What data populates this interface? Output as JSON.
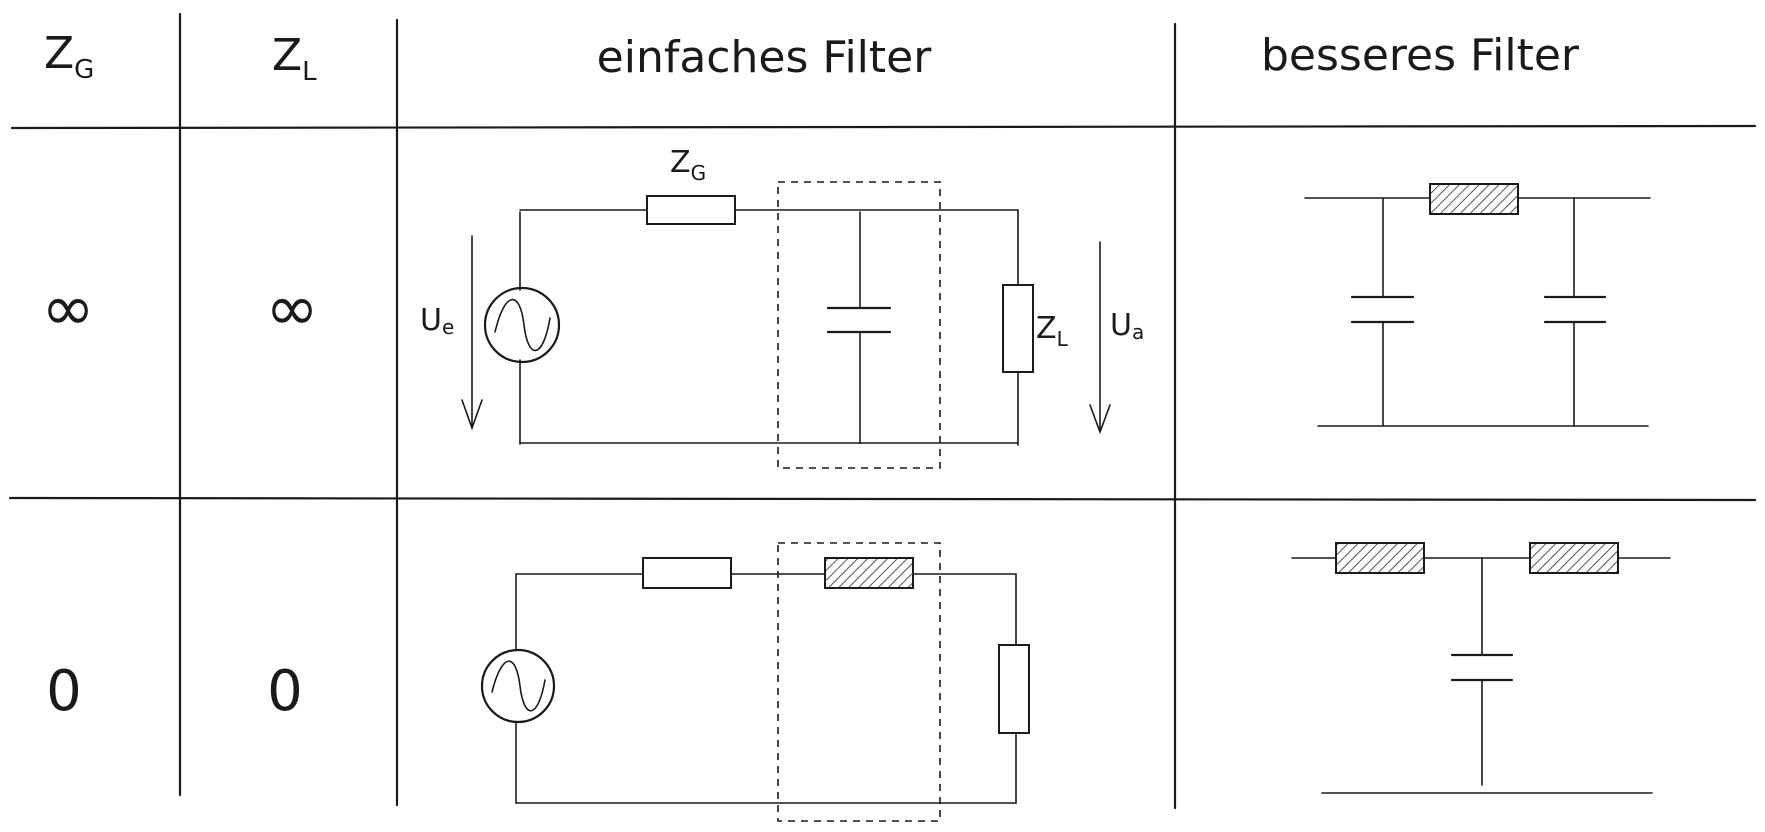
{
  "table": {
    "headers": {
      "zg_main": "Z",
      "zg_sub": "G",
      "zl_main": "Z",
      "zl_sub": "L",
      "simple": "einfaches Filter",
      "better": "besseres Filter"
    },
    "rows": [
      {
        "zg": "∞",
        "zl": "∞"
      },
      {
        "zg": "0",
        "zl": "0"
      }
    ]
  },
  "circuit_labels": {
    "zg_main": "Z",
    "zg_sub": "G",
    "zl_main": "Z",
    "zl_sub": "L",
    "ue_main": "U",
    "ue_sub": "e",
    "ua_main": "U",
    "ua_sub": "a"
  },
  "colors": {
    "ink": "#1a1a1a",
    "paper": "#ffffff",
    "hatch": "#555555"
  }
}
